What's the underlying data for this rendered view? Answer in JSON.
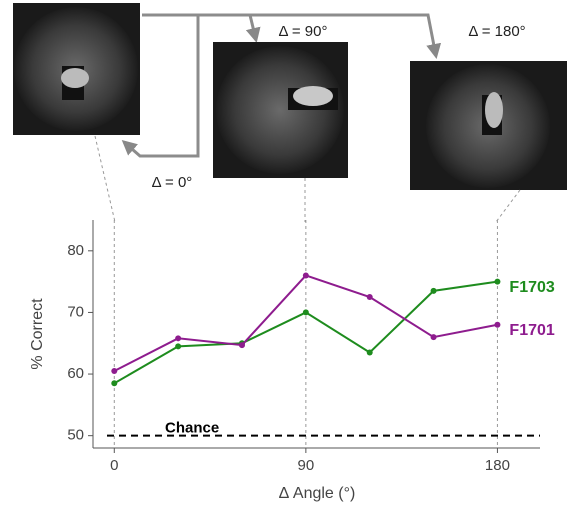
{
  "chart_data": {
    "type": "line",
    "x": [
      0,
      30,
      60,
      90,
      120,
      150,
      180
    ],
    "series": [
      {
        "name": "F1703",
        "color": "#1e8c1e",
        "values": [
          58.5,
          64.5,
          65,
          70,
          63.5,
          73.5,
          75
        ]
      },
      {
        "name": "F1701",
        "color": "#8e1c8e",
        "values": [
          60.5,
          65.8,
          64.7,
          76,
          72.5,
          66,
          68
        ]
      }
    ],
    "xlim": [
      -10,
      200
    ],
    "xticks": [
      0,
      90,
      180
    ],
    "ylim": [
      48,
      85
    ],
    "yticks": [
      50,
      60,
      70,
      80
    ],
    "xlabel": "Δ Angle (°)",
    "ylabel": "% Correct",
    "chance": {
      "label": "Chance",
      "value": 50
    },
    "annotations": [
      "Δ = 0°",
      "Δ = 90°",
      "Δ = 180°"
    ]
  }
}
